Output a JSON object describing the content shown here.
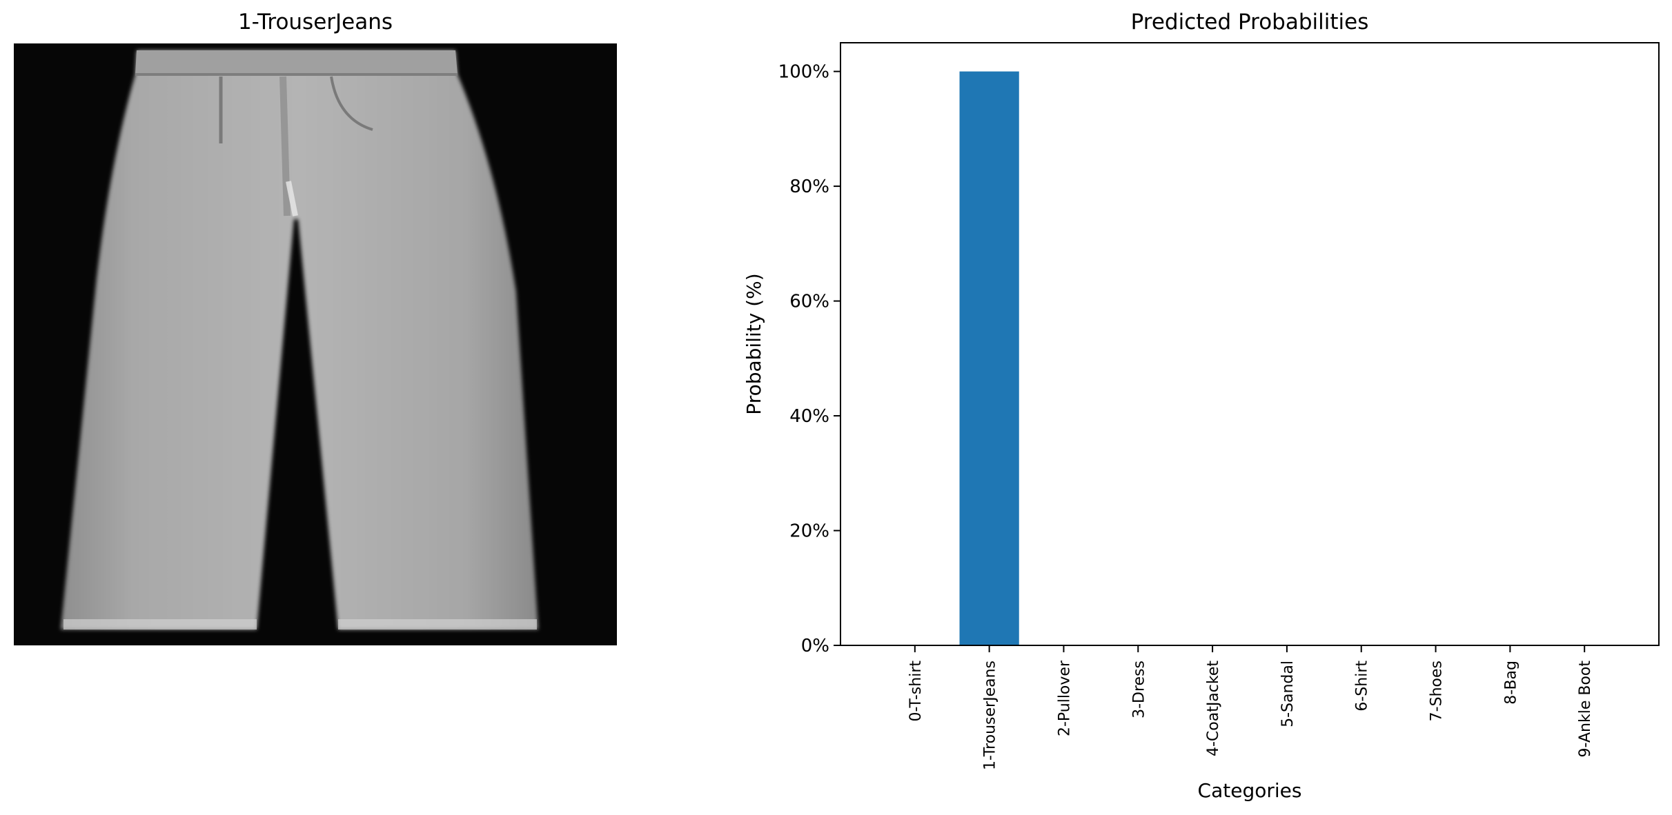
{
  "image_panel": {
    "title": "1-TrouserJeans",
    "subject": "trouser-jeans-grayscale-image"
  },
  "chart_data": {
    "type": "bar",
    "title": "Predicted Probabilities",
    "xlabel": "Categories",
    "ylabel": "Probability (%)",
    "categories": [
      "0-T-shirt",
      "1-TrouserJeans",
      "2-Pullover",
      "3-Dress",
      "4-CoatJacket",
      "5-Sandal",
      "6-Shirt",
      "7-Shoes",
      "8-Bag",
      "9-Ankle Boot"
    ],
    "values": [
      0,
      100,
      0,
      0,
      0,
      0,
      0,
      0,
      0,
      0
    ],
    "ylim": [
      0,
      105
    ],
    "yticks": [
      0,
      20,
      40,
      60,
      80,
      100
    ],
    "ytick_labels": [
      "0%",
      "20%",
      "40%",
      "60%",
      "80%",
      "100%"
    ],
    "bar_color": "#1f77b4",
    "grid": false,
    "legend": "none"
  }
}
